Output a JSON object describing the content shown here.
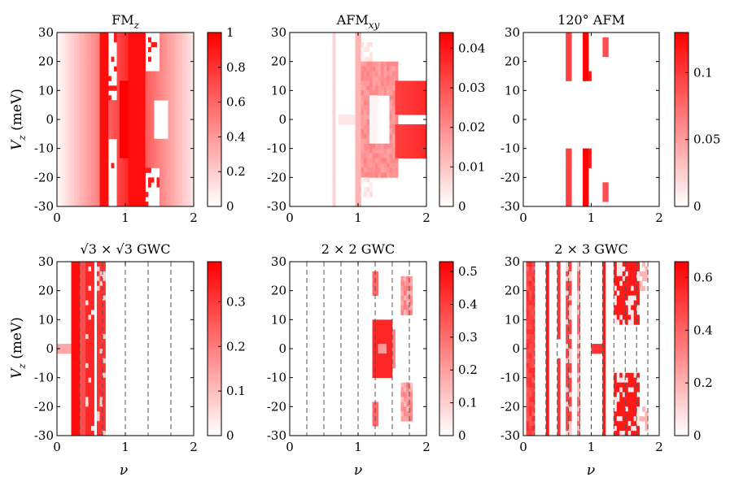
{
  "figure": {
    "xlabel": "ν",
    "ylabel_main": "V",
    "ylabel_sub": "z",
    "ylabel_unit": " (meV)",
    "x_ticks": [
      "0",
      "1",
      "2"
    ],
    "y_ticks": [
      "30",
      "20",
      "10",
      "0",
      "-10",
      "-20",
      "-30"
    ]
  },
  "chart_data": [
    {
      "type": "heatmap",
      "title_main": "FM",
      "title_sub": "z",
      "xlabel": "",
      "ylabel": "V_z (meV)",
      "xlim": [
        0,
        2
      ],
      "ylim": [
        -30,
        30
      ],
      "colorbar": {
        "min": 0,
        "max": 1,
        "ticks": [
          0,
          0.2,
          0.4,
          0.6,
          0.8,
          1
        ],
        "tick_labels": [
          "0",
          "0.2",
          "0.4",
          "0.6",
          "0.8",
          "1"
        ]
      },
      "pattern": "fm",
      "vlines": []
    },
    {
      "type": "heatmap",
      "title_main": "AFM",
      "title_sub": "xy",
      "xlim": [
        0,
        2
      ],
      "ylim": [
        -30,
        30
      ],
      "colorbar": {
        "min": 0,
        "max": 0.044,
        "ticks": [
          0,
          0.01,
          0.02,
          0.03,
          0.04
        ],
        "tick_labels": [
          "0",
          "0.01",
          "0.02",
          "0.03",
          "0.04"
        ]
      },
      "pattern": "afm",
      "vlines": []
    },
    {
      "type": "heatmap",
      "title_main": "120° AFM",
      "title_sub": "",
      "xlim": [
        0,
        2
      ],
      "ylim": [
        -30,
        30
      ],
      "colorbar": {
        "min": 0,
        "max": 0.13,
        "ticks": [
          0,
          0.05,
          0.1
        ],
        "tick_labels": [
          "0",
          "0.05",
          "0.1"
        ]
      },
      "pattern": "afm120",
      "vlines": []
    },
    {
      "type": "heatmap",
      "title_main": "√3 × √3 GWC",
      "title_sub": "",
      "xlabel": "ν",
      "ylabel": "V_z (meV)",
      "xlim": [
        0,
        2
      ],
      "ylim": [
        -30,
        30
      ],
      "colorbar": {
        "min": 0,
        "max": 0.39,
        "ticks": [
          0,
          0.1,
          0.2,
          0.3
        ],
        "tick_labels": [
          "0",
          "0.1",
          "0.2",
          "0.3"
        ]
      },
      "pattern": "sqrt3",
      "vlines": [
        0.333,
        0.667,
        1.0,
        1.333,
        1.667
      ]
    },
    {
      "type": "heatmap",
      "title_main": "2 × 2 GWC",
      "title_sub": "",
      "xlabel": "ν",
      "xlim": [
        0,
        2
      ],
      "ylim": [
        -30,
        30
      ],
      "colorbar": {
        "min": 0,
        "max": 0.53,
        "ticks": [
          0,
          0.1,
          0.2,
          0.3,
          0.4,
          0.5
        ],
        "tick_labels": [
          "0",
          "0.1",
          "0.2",
          "0.3",
          "0.4",
          "0.5"
        ]
      },
      "pattern": "gwc22",
      "vlines": [
        0.25,
        0.5,
        0.75,
        1.0,
        1.25,
        1.5,
        1.75
      ]
    },
    {
      "type": "heatmap",
      "title_main": "2 × 3 GWC",
      "title_sub": "",
      "xlabel": "ν",
      "xlim": [
        0,
        2
      ],
      "ylim": [
        -30,
        30
      ],
      "colorbar": {
        "min": 0,
        "max": 0.66,
        "ticks": [
          0,
          0.2,
          0.4,
          0.6
        ],
        "tick_labels": [
          "0",
          "0.2",
          "0.4",
          "0.6"
        ]
      },
      "pattern": "gwc23",
      "vlines": [
        0.167,
        0.333,
        0.5,
        0.667,
        0.833,
        1.0,
        1.167,
        1.333,
        1.5,
        1.667,
        1.833
      ]
    }
  ],
  "colors": {
    "max": "#ff0000",
    "min": "#ffffff",
    "axis": "#000000",
    "dash": "#555555"
  }
}
